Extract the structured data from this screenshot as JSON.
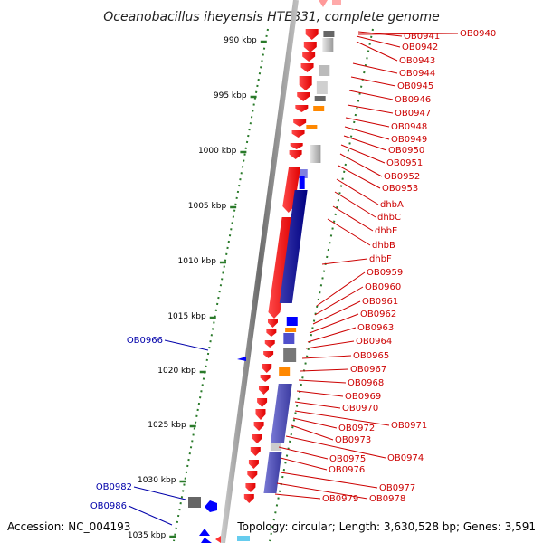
{
  "title": "Oceanobacillus iheyensis HTE831, complete genome",
  "footer": {
    "accession": "Accession: NC_004193",
    "topology": "Topology: circular; Length: 3,630,528 bp; Genes: 3,591"
  },
  "colors": {
    "forward_gene": "#ff0000",
    "forward_label": "#cc0000",
    "reverse_gene": "#0000ff",
    "reverse_label": "#0000aa",
    "tick": "#2a7a2a",
    "backbone": "#8a8a8a"
  },
  "scale_ticks": [
    "990 kbp",
    "995 kbp",
    "1000 kbp",
    "1005 kbp",
    "1010 kbp",
    "1015 kbp",
    "1020 kbp",
    "1025 kbp",
    "1030 kbp",
    "1035 kbp"
  ],
  "forward_gene_labels": [
    "OB0940",
    "OB0941",
    "OB0942",
    "OB0943",
    "OB0944",
    "OB0945",
    "OB0946",
    "OB0947",
    "OB0948",
    "OB0949",
    "OB0950",
    "OB0951",
    "OB0952",
    "OB0953",
    "dhbA",
    "dhbC",
    "dhbE",
    "dhbB",
    "dhbF",
    "OB0959",
    "OB0960",
    "OB0961",
    "OB0962",
    "OB0963",
    "OB0964",
    "OB0965",
    "OB0967",
    "OB0968",
    "OB0969",
    "OB0970",
    "OB0971",
    "OB0972",
    "OB0973",
    "OB0974",
    "OB0975",
    "OB0976",
    "OB0977",
    "OB0978",
    "OB0979"
  ],
  "reverse_gene_labels": [
    "OB0966",
    "OB0982",
    "OB0986"
  ]
}
